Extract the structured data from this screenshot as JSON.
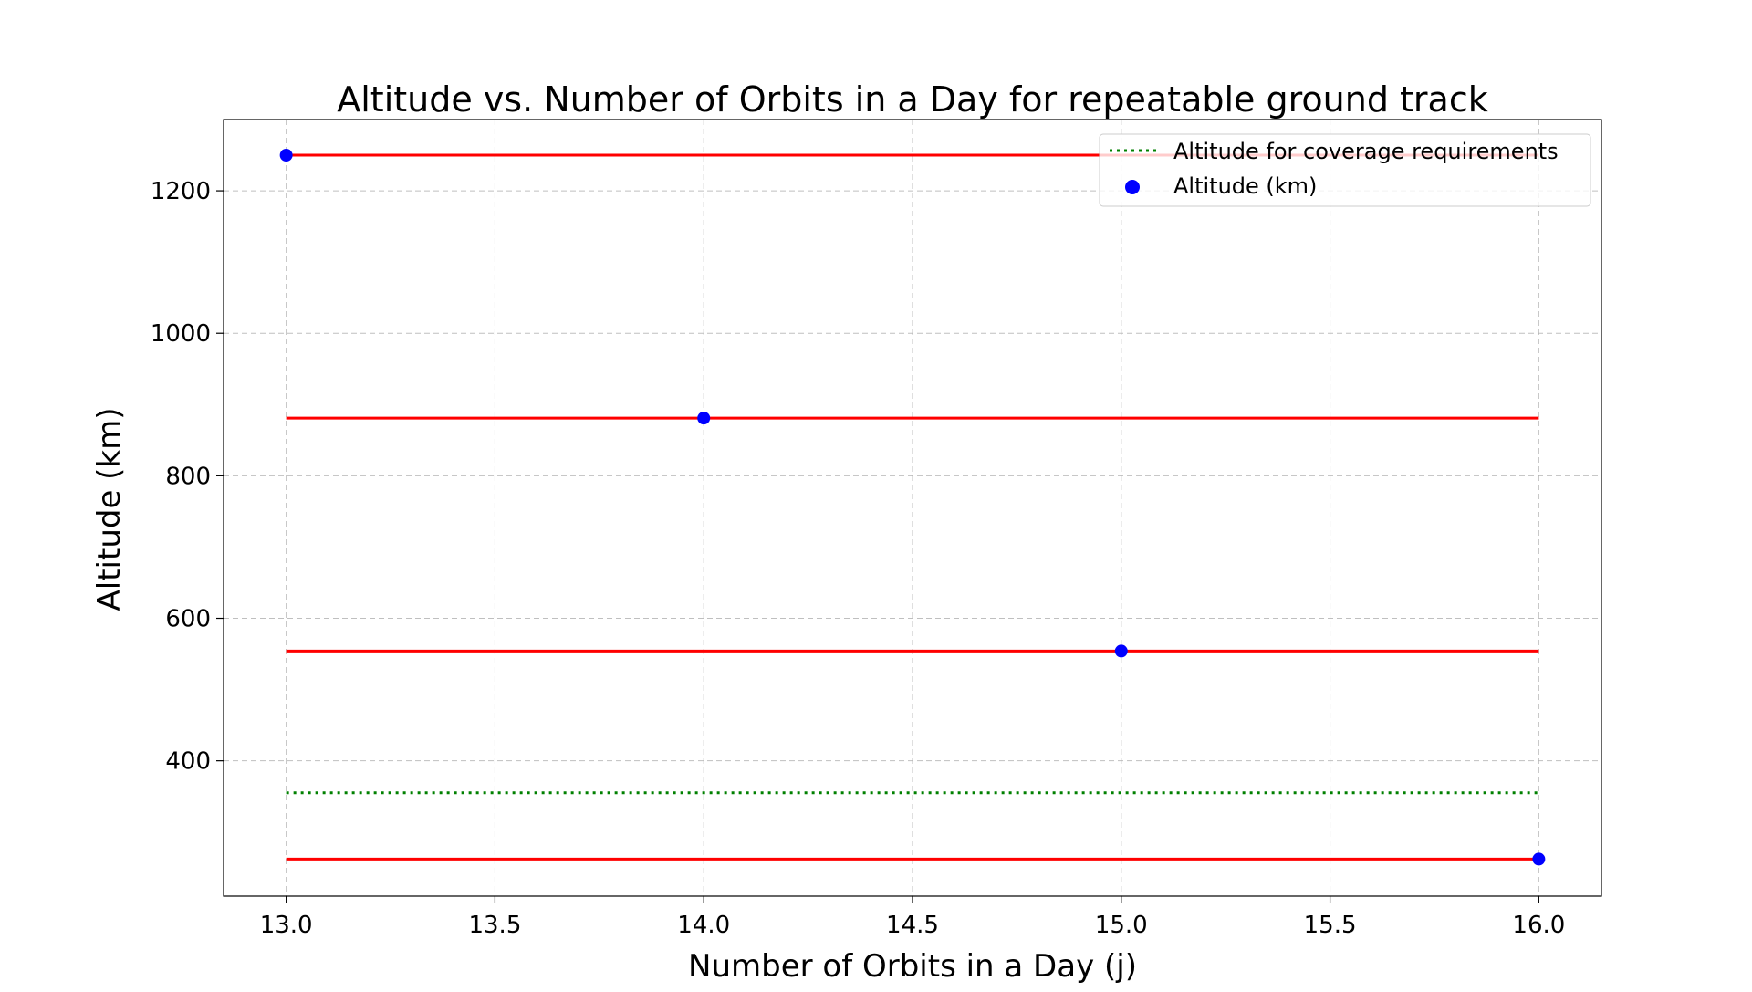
{
  "chart_data": {
    "type": "scatter",
    "title": "Altitude vs. Number of Orbits in a Day for repeatable ground track",
    "xlabel": "Number of Orbits in a Day (j)",
    "ylabel": "Altitude (km)",
    "xlim": [
      12.85,
      16.15
    ],
    "ylim": [
      210,
      1300
    ],
    "x_ticks": [
      13.0,
      13.5,
      14.0,
      14.5,
      15.0,
      15.5,
      16.0
    ],
    "x_tick_labels": [
      "13.0",
      "13.5",
      "14.0",
      "14.5",
      "15.0",
      "15.5",
      "16.0"
    ],
    "y_ticks": [
      400,
      600,
      800,
      1000,
      1200
    ],
    "y_tick_labels": [
      "400",
      "600",
      "800",
      "1000",
      "1200"
    ],
    "grid": true,
    "legend_position": "top-right",
    "series": [
      {
        "name": "Altitude (km)",
        "kind": "scatter",
        "color": "#0000ff",
        "x": [
          13,
          14,
          15,
          16
        ],
        "y": [
          1250,
          881,
          554,
          262
        ]
      },
      {
        "name": "Altitude for coverage requirements",
        "kind": "hline",
        "style": "dotted",
        "color": "#008000",
        "y": 355,
        "xrange": [
          13,
          16
        ]
      }
    ],
    "reference_lines": {
      "color": "#ff0000",
      "y": [
        1250,
        881,
        554,
        262
      ],
      "xrange": [
        13,
        16
      ]
    }
  }
}
